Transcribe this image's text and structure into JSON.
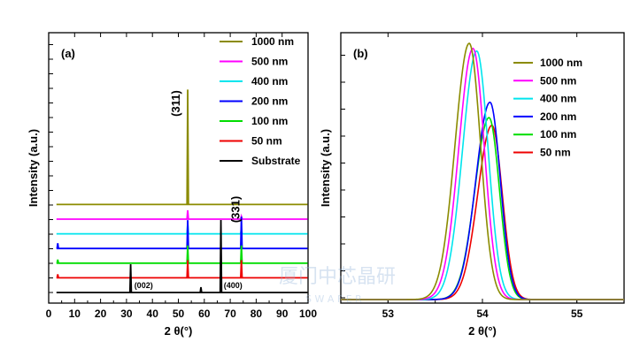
{
  "chart_data": [
    {
      "panel_label": "(a)",
      "type": "line",
      "xlabel": "2 θ(°)",
      "ylabel": "Intensity (a.u.)",
      "xlim": [
        0,
        100
      ],
      "x_ticks": [
        "0",
        "10",
        "20",
        "30",
        "40",
        "50",
        "60",
        "70",
        "80",
        "90",
        "100"
      ],
      "legend_position": "top-right",
      "series": [
        {
          "name": "1000 nm",
          "color": "#8b8b00",
          "baseline": 0.86,
          "peaks": [
            {
              "x": 53.6,
              "h": 6.5
            }
          ]
        },
        {
          "name": "500  nm",
          "color": "#ff00ff",
          "baseline": 0.74,
          "peaks": [
            {
              "x": 53.6,
              "h": 0.5
            },
            {
              "x": 74.3,
              "h": 0.15
            }
          ]
        },
        {
          "name": "400  nm",
          "color": "#00e5ee",
          "baseline": 0.63,
          "peaks": [
            {
              "x": 53.6,
              "h": 0.6
            },
            {
              "x": 74.3,
              "h": 0.3
            }
          ]
        },
        {
          "name": "200  nm",
          "color": "#0000ff",
          "baseline": 0.52,
          "peaks": [
            {
              "x": 3.5,
              "h": 0.3
            },
            {
              "x": 53.6,
              "h": 1.6
            },
            {
              "x": 74.3,
              "h": 1.8
            }
          ]
        },
        {
          "name": "100  nm",
          "color": "#00dd00",
          "baseline": 0.41,
          "peaks": [
            {
              "x": 3.5,
              "h": 0.2
            },
            {
              "x": 53.6,
              "h": 1.0
            },
            {
              "x": 74.3,
              "h": 1.0
            }
          ]
        },
        {
          "name": "50    nm",
          "color": "#ee0000",
          "baseline": 0.3,
          "peaks": [
            {
              "x": 3.5,
              "h": 0.2
            },
            {
              "x": 53.6,
              "h": 1.0
            },
            {
              "x": 74.3,
              "h": 1.0
            }
          ]
        },
        {
          "name": "Substrate",
          "color": "#000000",
          "baseline": 0.19,
          "peaks": [
            {
              "x": 31.6,
              "h": 1.6
            },
            {
              "x": 58.7,
              "h": 0.3
            },
            {
              "x": 66.4,
              "h": 4.1
            }
          ]
        }
      ],
      "annotations": [
        {
          "text": "(311)",
          "x": 50.5,
          "y": 10.7,
          "rotate": true
        },
        {
          "text": "(331)",
          "x": 73.5,
          "y": 4.7,
          "rotate": true
        },
        {
          "text": "(002)",
          "x": 33.0,
          "y": 0.4
        },
        {
          "text": "(400)",
          "x": 67.5,
          "y": 0.4
        }
      ]
    },
    {
      "panel_label": "(b)",
      "type": "line",
      "xlabel": "2 θ(°)",
      "ylabel": "Intensity (a.u.)",
      "xlim": [
        52.5,
        55.5
      ],
      "x_ticks": [
        "53",
        "54",
        "55"
      ],
      "legend_position": "top-right",
      "series": [
        {
          "name": "1000  nm",
          "color": "#8b8b00",
          "center": 53.86,
          "sigma_left": 0.15,
          "sigma_right": 0.12,
          "height": 1.0
        },
        {
          "name": "500  nm",
          "color": "#ff00ff",
          "center": 53.9,
          "sigma_left": 0.15,
          "sigma_right": 0.12,
          "height": 0.98
        },
        {
          "name": "400  nm",
          "color": "#00e5ee",
          "center": 53.94,
          "sigma_left": 0.15,
          "sigma_right": 0.12,
          "height": 0.97
        },
        {
          "name": "200  nm",
          "color": "#0000ff",
          "center": 54.08,
          "sigma_left": 0.15,
          "sigma_right": 0.11,
          "height": 0.77
        },
        {
          "name": "100    nm",
          "color": "#00dd00",
          "center": 54.07,
          "sigma_left": 0.15,
          "sigma_right": 0.11,
          "height": 0.71
        },
        {
          "name": "50    nm",
          "color": "#ee0000",
          "center": 54.1,
          "sigma_left": 0.15,
          "sigma_right": 0.11,
          "height": 0.68
        }
      ]
    }
  ],
  "watermark": {
    "text": "厦门中芯晶研",
    "subtext": "S W A F E R"
  }
}
